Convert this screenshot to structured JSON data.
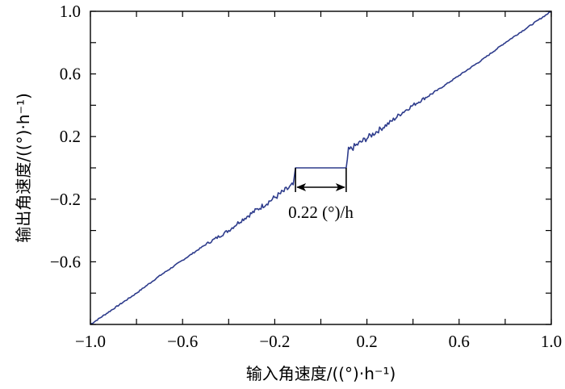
{
  "chart_data": {
    "type": "line",
    "title": "",
    "xlabel": "输入角速度/((°)·h⁻¹)",
    "ylabel": "输出角速度/((°)·h⁻¹)",
    "xlim": [
      -1.0,
      1.0
    ],
    "ylim": [
      -1.0,
      1.0
    ],
    "x_tick_labels": [
      "−1.0",
      "−0.6",
      "−0.2",
      "0.2",
      "0.6",
      "1.0"
    ],
    "y_tick_labels": [
      "−0.6",
      "−0.2",
      "0.2",
      "0.6",
      "1.0"
    ],
    "grid": false,
    "series": [
      {
        "color": "#2e3c8c",
        "x": [
          -1.0,
          -0.9,
          -0.8,
          -0.7,
          -0.6,
          -0.5,
          -0.4,
          -0.35,
          -0.3,
          -0.25,
          -0.2,
          -0.15,
          -0.12,
          -0.11,
          0.0,
          0.11,
          0.12,
          0.15,
          0.2,
          0.25,
          0.3,
          0.35,
          0.4,
          0.5,
          0.6,
          0.7,
          0.8,
          0.9,
          1.0
        ],
        "y": [
          -1.0,
          -0.9,
          -0.8,
          -0.69,
          -0.59,
          -0.49,
          -0.4,
          -0.34,
          -0.29,
          -0.24,
          -0.19,
          -0.14,
          -0.11,
          0.0,
          0.0,
          0.0,
          0.11,
          0.14,
          0.19,
          0.24,
          0.29,
          0.35,
          0.4,
          0.49,
          0.59,
          0.69,
          0.8,
          0.9,
          1.0
        ]
      }
    ],
    "annotation": {
      "text": "0.22 (°)/h",
      "x_from": -0.11,
      "x_to": 0.11
    }
  }
}
